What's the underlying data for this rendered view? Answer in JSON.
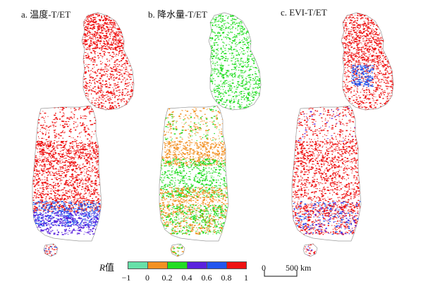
{
  "panels": [
    {
      "title": "a. 温度-T/ET"
    },
    {
      "title": "b. 降水量-T/ET"
    },
    {
      "title": "c. EVI-T/ET"
    }
  ],
  "legend": {
    "title_italic": "R",
    "title_rest": "值",
    "classes": [
      {
        "range": [
          -1,
          0
        ],
        "color": "#66e0a8"
      },
      {
        "range": [
          0,
          0.2
        ],
        "color": "#f29022"
      },
      {
        "range": [
          0.2,
          0.4
        ],
        "color": "#22dd22"
      },
      {
        "range": [
          0.4,
          0.6
        ],
        "color": "#5a22dd"
      },
      {
        "range": [
          0.6,
          0.8
        ],
        "color": "#2255ee"
      },
      {
        "range": [
          0.8,
          1
        ],
        "color": "#ee1111"
      }
    ],
    "ticks": [
      "−1",
      "0",
      "0.2",
      "0.4",
      "0.6",
      "0.8",
      "1"
    ]
  },
  "scale_bar": {
    "start_label": "0",
    "end_label": "500 km"
  },
  "colors": {
    "red": "#ee1111",
    "green": "#22dd22",
    "orange": "#f29022",
    "blue": "#2255ee",
    "purple": "#5a22dd",
    "outline": "#9a9a9a"
  }
}
